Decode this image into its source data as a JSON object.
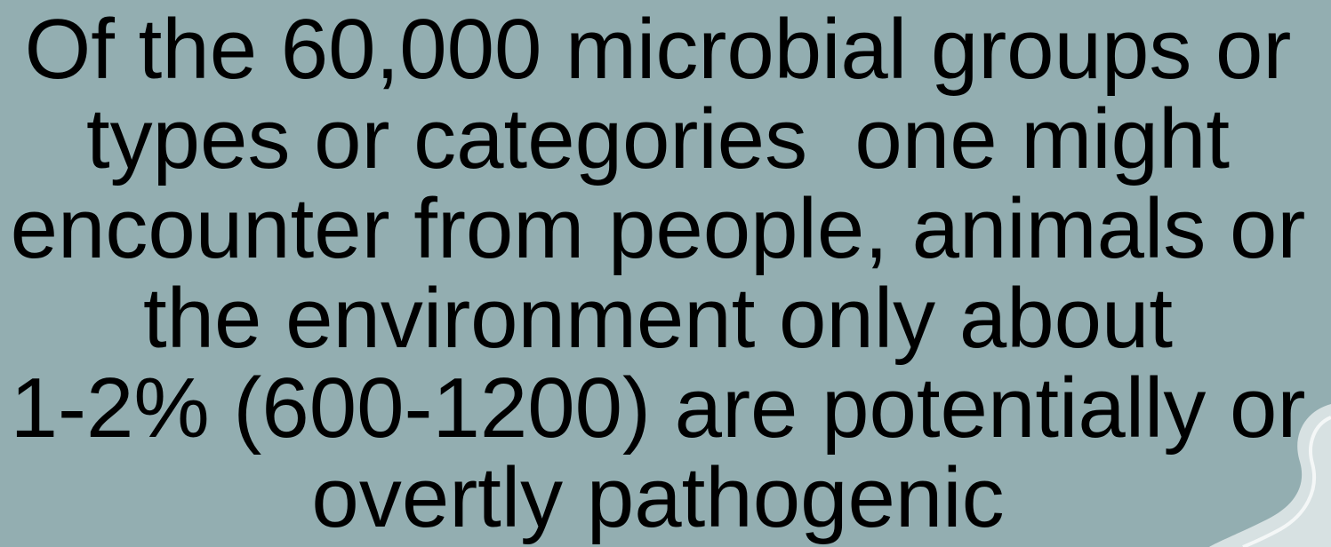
{
  "slide": {
    "lines": [
      "Of the 60,000 microbial groups or",
      "types or categories  one might",
      "encounter from people, animals or",
      "the environment only about",
      "1-2% (600-1200) are potentially or",
      "overtly pathogenic"
    ]
  }
}
